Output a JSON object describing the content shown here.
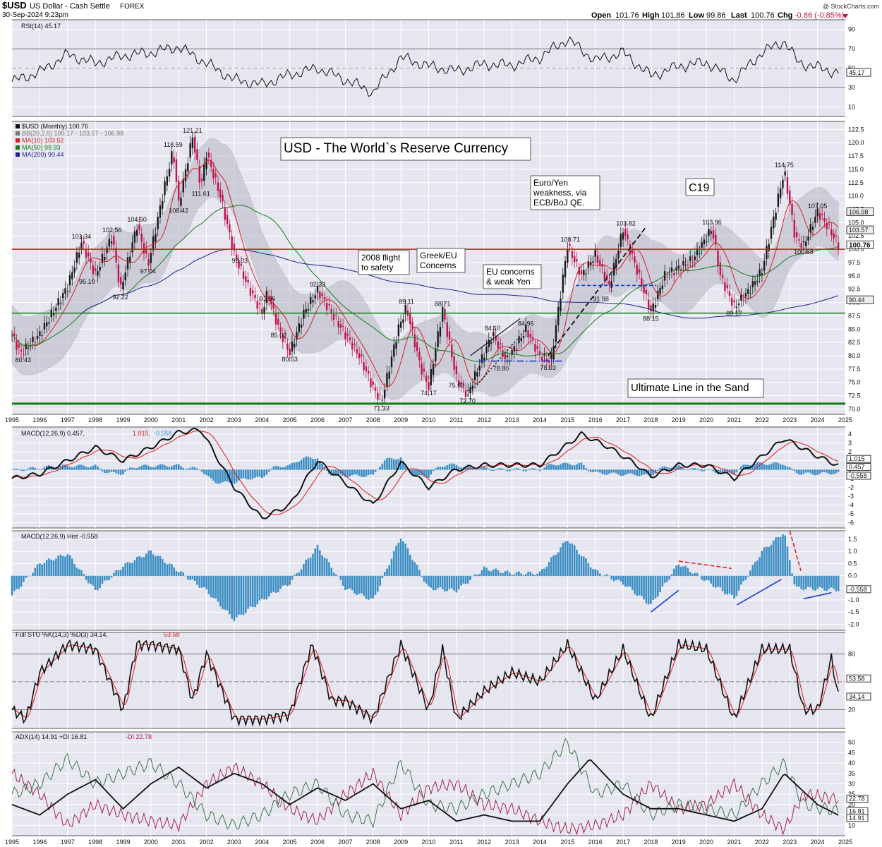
{
  "header": {
    "symbol": "$USD",
    "name": "US Dollar - Cash Settle",
    "exchange": "FOREX",
    "date": "30-Sep-2024 9:23pm",
    "watermark": "@ StockCharts.com",
    "open_label": "Open",
    "open": "101.76",
    "high_label": "High",
    "high": "101.86",
    "low_label": "Low",
    "low": "99.86",
    "last_label": "Last",
    "last": "100.76",
    "chg_label": "Chg",
    "chg": "-0.86 (-0.85%)"
  },
  "colors": {
    "panel_bg": "#e6e6f0",
    "grid": "#ffffff",
    "up": "#1a1a1a",
    "down": "#c0144b",
    "ma10": "#d42020",
    "ma50": "#1a7a1a",
    "ma200": "#23238e",
    "band": "#b8b8c8",
    "hist": "#3d8fc4",
    "signal": "#e01818",
    "red_line": "#d01818",
    "green_line": "#108010"
  },
  "x_axis": {
    "labels": [
      "1995",
      "1996",
      "1997",
      "1998",
      "1999",
      "2000",
      "2001",
      "2002",
      "2003",
      "2004",
      "2005",
      "2006",
      "2007",
      "2008",
      "2009",
      "2010",
      "2011",
      "2012",
      "2013",
      "2014",
      "2015",
      "2016",
      "2017",
      "2018",
      "2019",
      "2020",
      "2021",
      "2022",
      "2023",
      "2024",
      "2025"
    ]
  },
  "rsi": {
    "legend": "RSI(14) 45.17",
    "last": "45.17",
    "ticks": [
      "90",
      "70",
      "50",
      "30",
      "10"
    ],
    "levels": [
      70,
      30
    ],
    "series": [
      [
        1995,
        36
      ],
      [
        1996,
        46
      ],
      [
        1997,
        64
      ],
      [
        1998,
        55
      ],
      [
        1999,
        63
      ],
      [
        2000,
        66
      ],
      [
        2001,
        72
      ],
      [
        2002,
        55
      ],
      [
        2003,
        38
      ],
      [
        2004,
        33
      ],
      [
        2005,
        43
      ],
      [
        2006,
        50
      ],
      [
        2007,
        38
      ],
      [
        2008,
        25
      ],
      [
        2009,
        61
      ],
      [
        2010,
        52
      ],
      [
        2011,
        47
      ],
      [
        2012,
        54
      ],
      [
        2013,
        53
      ],
      [
        2014,
        61
      ],
      [
        2015,
        80
      ],
      [
        2016,
        58
      ],
      [
        2017,
        66
      ],
      [
        2018,
        42
      ],
      [
        2019,
        52
      ],
      [
        2020,
        56
      ],
      [
        2021,
        38
      ],
      [
        2022,
        66
      ],
      [
        2022.8,
        78
      ],
      [
        2023.3,
        56
      ],
      [
        2024.75,
        45
      ]
    ]
  },
  "main": {
    "legend": [
      "$USD (Monthly) 100.76",
      "BB(20,2.0) 100.17 - 103.57 - 106.98",
      "MA(10) 103.52",
      "MA(50) 99.93",
      "MA(200) 90.44"
    ],
    "title": "USD - The World`s Reserve Currency",
    "ticks": [
      "122.5",
      "120.0",
      "117.5",
      "115.0",
      "112.5",
      "110.0",
      "107.5",
      "105.0",
      "102.5",
      "100.0",
      "97.5",
      "95.0",
      "92.5",
      "90.0",
      "87.5",
      "85.0",
      "82.5",
      "80.0",
      "77.5",
      "75.0",
      "72.5",
      "70.0"
    ],
    "axis_tags": [
      "106.98",
      "103.57",
      "100.76",
      "90.44"
    ],
    "hlines": [
      100,
      88,
      71
    ],
    "price": [
      [
        1995,
        84
      ],
      [
        1995.3,
        80.43
      ],
      [
        1996,
        84
      ],
      [
        1997,
        93
      ],
      [
        1997.5,
        101.34
      ],
      [
        1998,
        95.1
      ],
      [
        1998.6,
        102.56
      ],
      [
        1998.9,
        92.22
      ],
      [
        1999.5,
        104.5
      ],
      [
        1999.9,
        97.04
      ],
      [
        2000.5,
        112
      ],
      [
        2000.8,
        118.59
      ],
      [
        2001,
        108.42
      ],
      [
        2001.5,
        121.21
      ],
      [
        2001.8,
        111.61
      ],
      [
        2002,
        118
      ],
      [
        2002.5,
        110
      ],
      [
        2003,
        99.03
      ],
      [
        2003.5,
        93
      ],
      [
        2004,
        88
      ],
      [
        2004.2,
        91.96
      ],
      [
        2004.6,
        85.02
      ],
      [
        2005,
        80.53
      ],
      [
        2005.5,
        88
      ],
      [
        2006,
        92.33
      ],
      [
        2006.5,
        88
      ],
      [
        2007,
        84
      ],
      [
        2007.5,
        80
      ],
      [
        2008,
        74
      ],
      [
        2008.3,
        71.33
      ],
      [
        2008.9,
        85
      ],
      [
        2009.2,
        89.11
      ],
      [
        2009.7,
        78
      ],
      [
        2010,
        74.17
      ],
      [
        2010.5,
        88.71
      ],
      [
        2011,
        75.63
      ],
      [
        2011.4,
        72.7
      ],
      [
        2011.8,
        78
      ],
      [
        2012.3,
        84.1
      ],
      [
        2012.8,
        79
      ],
      [
        2013.5,
        84.96
      ],
      [
        2014,
        80
      ],
      [
        2014.4,
        78.93
      ],
      [
        2015,
        100.71
      ],
      [
        2015.5,
        95
      ],
      [
        2016,
        99
      ],
      [
        2016.5,
        93
      ],
      [
        2017,
        103.82
      ],
      [
        2017.5,
        96
      ],
      [
        2018,
        88.15
      ],
      [
        2018.5,
        95
      ],
      [
        2019.5,
        98
      ],
      [
        2020.2,
        103.96
      ],
      [
        2020.5,
        95
      ],
      [
        2021,
        89.17
      ],
      [
        2021.5,
        92
      ],
      [
        2022,
        96
      ],
      [
        2022.8,
        114.75
      ],
      [
        2023.2,
        102
      ],
      [
        2023.5,
        100.68
      ],
      [
        2024,
        107.05
      ],
      [
        2024.4,
        104
      ],
      [
        2024.75,
        100.76
      ]
    ],
    "annotations": [
      "80.43",
      "101.34",
      "95.10",
      "102.56",
      "92.22",
      "104.50",
      "97.04",
      "118.59",
      "108.42",
      "121.21",
      "111.61",
      "99.03",
      "91.96",
      "85.02",
      "80.53",
      "92.33",
      "71.33",
      "89.11",
      "74.17",
      "88.71",
      "75.63",
      "72.70",
      "84.10",
      "78.80",
      "84.96",
      "78.93",
      "100.71",
      "91.88",
      "103.82",
      "88.15",
      "103.96",
      "89.17",
      "114.75",
      "107.05",
      "100.68"
    ],
    "notes": [
      "2008 flight",
      "to safety",
      "Greek/EU",
      "Concerns",
      "EU concerns",
      "& weak Yen",
      "Euro/Yen",
      "weakness, via",
      "ECB/BoJ QE.",
      "C19",
      "Ultimate Line in the Sand"
    ]
  },
  "macd": {
    "legend_prefix": "MACD(12,26,9) 0.457,",
    "legend_signal": "1.015,",
    "legend_hist": "-0.558",
    "ticks": [
      "4",
      "3",
      "2",
      "1",
      "0",
      "-1",
      "-2",
      "-3",
      "-4",
      "-5",
      "-6"
    ],
    "axis_tags": [
      "1.015",
      "0.457",
      "-0.558"
    ],
    "series": [
      [
        1995,
        -1
      ],
      [
        1996,
        -0.5
      ],
      [
        1997,
        1
      ],
      [
        1998,
        2.5
      ],
      [
        1999,
        1
      ],
      [
        2000,
        2.5
      ],
      [
        2001,
        4.2
      ],
      [
        2001.8,
        4.5
      ],
      [
        2003,
        -2
      ],
      [
        2004,
        -5.5
      ],
      [
        2005,
        -4
      ],
      [
        2006,
        1
      ],
      [
        2007,
        -1.5
      ],
      [
        2008,
        -4
      ],
      [
        2009,
        0.8
      ],
      [
        2010,
        -2
      ],
      [
        2011,
        0
      ],
      [
        2012,
        0.5
      ],
      [
        2013,
        0.5
      ],
      [
        2014,
        0.5
      ],
      [
        2015.5,
        4
      ],
      [
        2016.5,
        2.5
      ],
      [
        2017.5,
        0.5
      ],
      [
        2018,
        -0.8
      ],
      [
        2019,
        0.5
      ],
      [
        2020,
        0.5
      ],
      [
        2021,
        -1
      ],
      [
        2022,
        1.5
      ],
      [
        2022.8,
        3.5
      ],
      [
        2024,
        1.5
      ],
      [
        2024.75,
        0.457
      ]
    ]
  },
  "hist": {
    "legend": "MACD(12,26,9) Hist -0.558",
    "ticks": [
      "1.5",
      "1.0",
      "0.5",
      "0.0",
      "-0.5",
      "-1.0",
      "-1.5",
      "-2.0"
    ],
    "axis_tags": [
      "-0.558"
    ],
    "series": [
      [
        1995,
        -0.8
      ],
      [
        1996,
        0.5
      ],
      [
        1997,
        0.9
      ],
      [
        1998,
        -0.6
      ],
      [
        1999,
        0.4
      ],
      [
        2000,
        1
      ],
      [
        2001,
        0.2
      ],
      [
        2002,
        -0.6
      ],
      [
        2003,
        -1.8
      ],
      [
        2004,
        -1
      ],
      [
        2005,
        -0.3
      ],
      [
        2006,
        1.2
      ],
      [
        2007,
        -0.5
      ],
      [
        2008,
        -1
      ],
      [
        2009,
        1.6
      ],
      [
        2010,
        -0.5
      ],
      [
        2011,
        -0.6
      ],
      [
        2012,
        0.3
      ],
      [
        2013,
        0.1
      ],
      [
        2014,
        0.1
      ],
      [
        2015,
        1.5
      ],
      [
        2016,
        0.2
      ],
      [
        2017,
        -0.3
      ],
      [
        2018,
        -1.2
      ],
      [
        2019,
        0.5
      ],
      [
        2020,
        -0.2
      ],
      [
        2021,
        -0.9
      ],
      [
        2022,
        1
      ],
      [
        2022.8,
        1.8
      ],
      [
        2023.2,
        -0.5
      ],
      [
        2024.75,
        -0.558
      ]
    ]
  },
  "sto": {
    "legend_prefix": "Full STO %K(14,3) %D(3) 34.14,",
    "legend_d": "53.58",
    "ticks": [
      "80",
      "20"
    ],
    "axis_tags": [
      "53.58",
      "34.14"
    ],
    "series": [
      [
        1995,
        20
      ],
      [
        1995.5,
        10
      ],
      [
        1996,
        60
      ],
      [
        1997,
        90
      ],
      [
        1998,
        85
      ],
      [
        1999,
        20
      ],
      [
        1999.5,
        90
      ],
      [
        2000,
        90
      ],
      [
        2001,
        85
      ],
      [
        2001.5,
        30
      ],
      [
        2002,
        80
      ],
      [
        2003,
        10
      ],
      [
        2004,
        10
      ],
      [
        2005,
        15
      ],
      [
        2005.8,
        90
      ],
      [
        2006.5,
        30
      ],
      [
        2007,
        30
      ],
      [
        2008,
        10
      ],
      [
        2009,
        90
      ],
      [
        2010,
        20
      ],
      [
        2010.5,
        85
      ],
      [
        2011,
        10
      ],
      [
        2012,
        40
      ],
      [
        2013,
        60
      ],
      [
        2014,
        50
      ],
      [
        2015,
        90
      ],
      [
        2016,
        30
      ],
      [
        2017,
        85
      ],
      [
        2018,
        10
      ],
      [
        2019,
        90
      ],
      [
        2020,
        85
      ],
      [
        2021,
        10
      ],
      [
        2022,
        85
      ],
      [
        2023,
        85
      ],
      [
        2023.5,
        20
      ],
      [
        2024,
        20
      ],
      [
        2024.5,
        75
      ],
      [
        2024.75,
        34.14
      ]
    ]
  },
  "adx": {
    "legend_prefix": "ADX(14) 14.91 +DI 16.81",
    "legend_minus": "-DI 22.78",
    "ticks": [
      "50",
      "45",
      "40",
      "35",
      "30",
      "25",
      "20",
      "15",
      "10"
    ],
    "axis_tags": [
      "22.78",
      "16.81",
      "14.91"
    ],
    "adx_series": [
      [
        1995,
        20
      ],
      [
        1996,
        15
      ],
      [
        1997,
        25
      ],
      [
        1998,
        32
      ],
      [
        1999,
        18
      ],
      [
        2000,
        30
      ],
      [
        2001,
        38
      ],
      [
        2002,
        28
      ],
      [
        2003,
        35
      ],
      [
        2004,
        30
      ],
      [
        2005,
        20
      ],
      [
        2006,
        28
      ],
      [
        2007,
        22
      ],
      [
        2008,
        30
      ],
      [
        2009,
        18
      ],
      [
        2010,
        22
      ],
      [
        2011,
        12
      ],
      [
        2012,
        15
      ],
      [
        2013,
        12
      ],
      [
        2014,
        12
      ],
      [
        2015,
        30
      ],
      [
        2015.8,
        42
      ],
      [
        2017,
        25
      ],
      [
        2018,
        18
      ],
      [
        2019,
        18
      ],
      [
        2020,
        15
      ],
      [
        2021,
        12
      ],
      [
        2022,
        18
      ],
      [
        2022.8,
        35
      ],
      [
        2024,
        20
      ],
      [
        2024.75,
        14.91
      ]
    ],
    "plus_series": [
      [
        1995,
        25
      ],
      [
        1996,
        30
      ],
      [
        1997,
        42
      ],
      [
        1998,
        30
      ],
      [
        1999,
        35
      ],
      [
        2000,
        40
      ],
      [
        2001,
        30
      ],
      [
        2002,
        15
      ],
      [
        2003,
        10
      ],
      [
        2004,
        15
      ],
      [
        2005,
        25
      ],
      [
        2006,
        30
      ],
      [
        2007,
        15
      ],
      [
        2008,
        12
      ],
      [
        2009,
        40
      ],
      [
        2010,
        20
      ],
      [
        2011,
        18
      ],
      [
        2012,
        25
      ],
      [
        2013,
        30
      ],
      [
        2014,
        35
      ],
      [
        2015,
        50
      ],
      [
        2016,
        25
      ],
      [
        2017,
        30
      ],
      [
        2018,
        15
      ],
      [
        2019,
        20
      ],
      [
        2020,
        18
      ],
      [
        2021,
        15
      ],
      [
        2022,
        30
      ],
      [
        2022.8,
        40
      ],
      [
        2023.5,
        20
      ],
      [
        2024.75,
        16.81
      ]
    ],
    "minus_series": [
      [
        1995,
        35
      ],
      [
        1996,
        25
      ],
      [
        1997,
        10
      ],
      [
        1998,
        20
      ],
      [
        1999,
        15
      ],
      [
        2000,
        12
      ],
      [
        2001,
        10
      ],
      [
        2002,
        30
      ],
      [
        2003,
        38
      ],
      [
        2004,
        30
      ],
      [
        2005,
        18
      ],
      [
        2006,
        12
      ],
      [
        2007,
        25
      ],
      [
        2008,
        35
      ],
      [
        2009,
        15
      ],
      [
        2010,
        28
      ],
      [
        2011,
        30
      ],
      [
        2012,
        20
      ],
      [
        2013,
        18
      ],
      [
        2014,
        12
      ],
      [
        2015,
        8
      ],
      [
        2016,
        10
      ],
      [
        2017,
        15
      ],
      [
        2018,
        30
      ],
      [
        2019,
        18
      ],
      [
        2020,
        20
      ],
      [
        2021,
        30
      ],
      [
        2022,
        15
      ],
      [
        2022.8,
        8
      ],
      [
        2023.5,
        25
      ],
      [
        2024.75,
        22.78
      ]
    ]
  }
}
